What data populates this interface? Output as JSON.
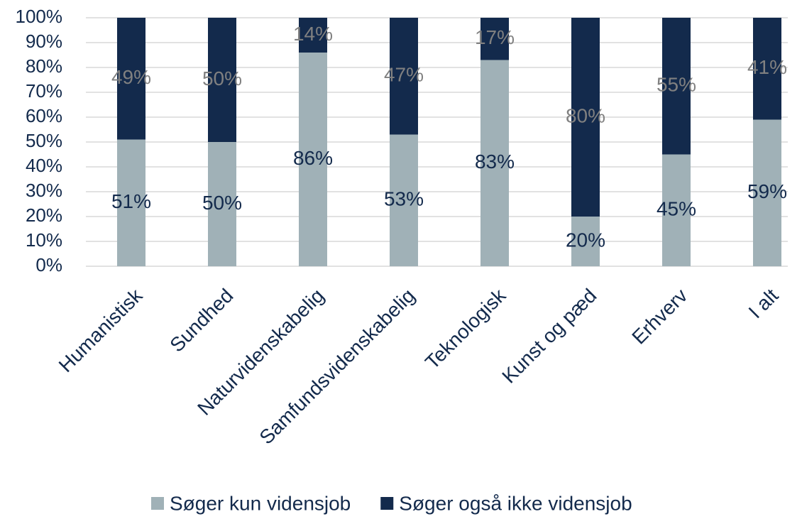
{
  "chart_data": {
    "type": "stacked_bar",
    "categories": [
      "Humanistisk",
      "Sundhed",
      "Naturvidenskabelig",
      "Samfundsvidenskabelig",
      "Teknologisk",
      "Kunst og pæd",
      "Erhverv",
      "I alt"
    ],
    "series": [
      {
        "name": "Søger kun vidensjob",
        "color": "#a0b1b7",
        "label_color": "#132a4c",
        "values": [
          51,
          50,
          86,
          53,
          83,
          20,
          45,
          59
        ],
        "value_labels": [
          "51%",
          "50%",
          "86%",
          "53%",
          "83%",
          "20%",
          "45%",
          "59%"
        ]
      },
      {
        "name": "Søger også ikke vidensjob",
        "color": "#132a4c",
        "label_color": "#808080",
        "values": [
          49,
          50,
          14,
          47,
          17,
          80,
          55,
          41
        ],
        "value_labels": [
          "49%",
          "50%",
          "14%",
          "47%",
          "17%",
          "80%",
          "55%",
          "41%"
        ]
      }
    ],
    "ylim": [
      0,
      100
    ],
    "yticks": [
      {
        "value": 0,
        "label": "0%"
      },
      {
        "value": 10,
        "label": "10%"
      },
      {
        "value": 20,
        "label": "20%"
      },
      {
        "value": 30,
        "label": "30%"
      },
      {
        "value": 40,
        "label": "40%"
      },
      {
        "value": 50,
        "label": "50%"
      },
      {
        "value": 60,
        "label": "60%"
      },
      {
        "value": 70,
        "label": "70%"
      },
      {
        "value": 80,
        "label": "80%"
      },
      {
        "value": 90,
        "label": "90%"
      },
      {
        "value": 100,
        "label": "100%"
      }
    ],
    "grid": true,
    "legend": "bottom"
  }
}
